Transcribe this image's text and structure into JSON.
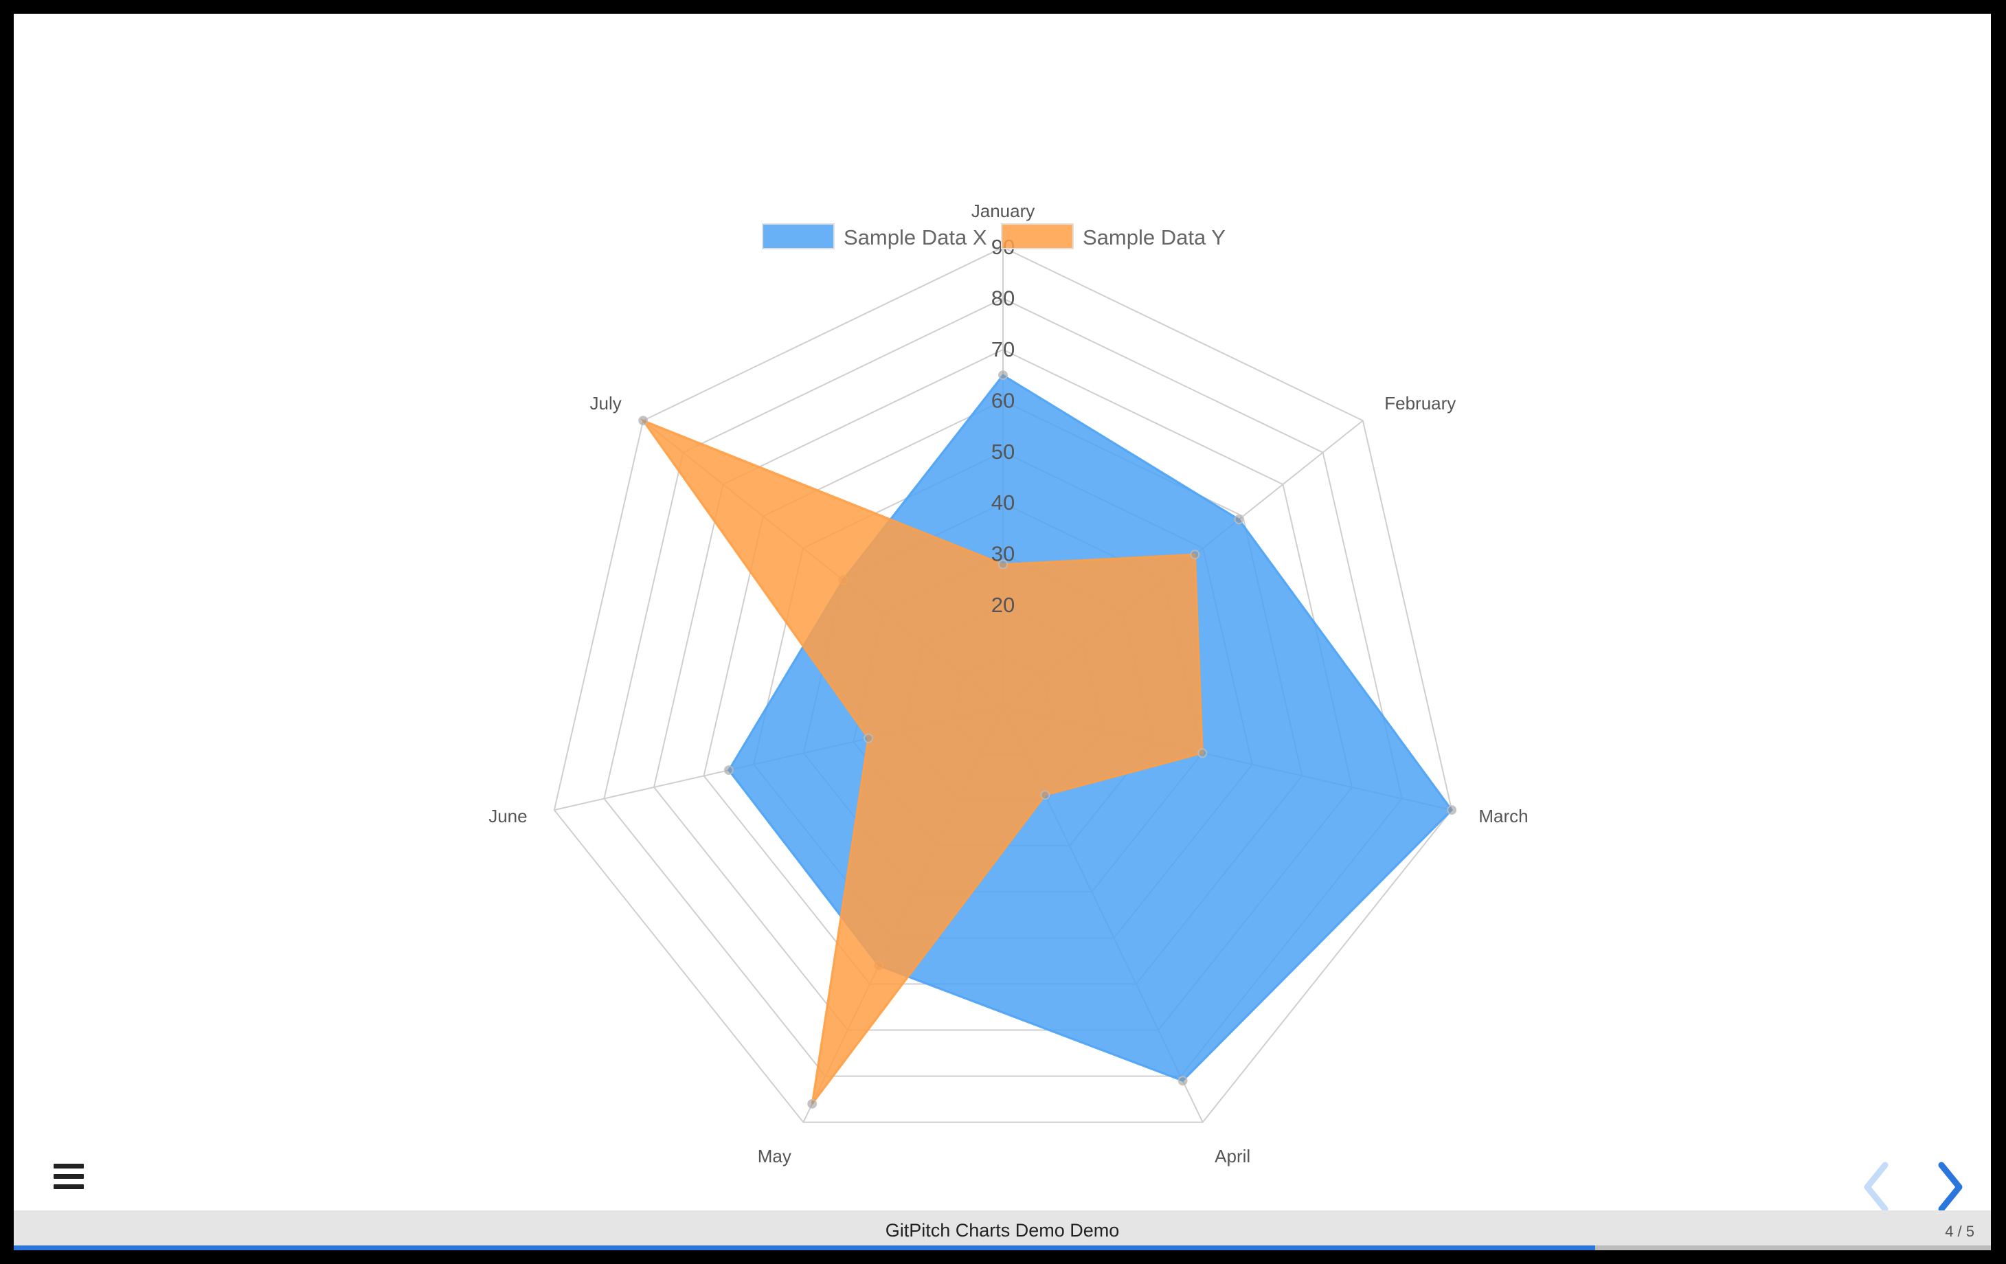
{
  "chart_data": {
    "type": "radar",
    "categories": [
      "January",
      "February",
      "March",
      "April",
      "May",
      "June",
      "July"
    ],
    "r_ticks": [
      10,
      20,
      30,
      40,
      50,
      60,
      70,
      80,
      90
    ],
    "r_tick_labels": [
      "",
      "20",
      "30",
      "40",
      "50",
      "60",
      "70",
      "80",
      "90"
    ],
    "r_range": [
      0,
      90
    ],
    "grid": true,
    "legend_position": "top",
    "series": [
      {
        "name": "Sample Data X",
        "values": [
          65,
          59,
          90,
          81,
          56,
          55,
          40
        ],
        "color": "#4da3f5"
      },
      {
        "name": "Sample Data Y",
        "values": [
          28,
          48,
          40,
          19,
          86,
          27,
          90
        ],
        "color": "#ff9f45"
      }
    ]
  },
  "footer": {
    "title": "GitPitch Charts Demo Demo",
    "counter": "4 / 5",
    "progress": 0.8
  },
  "controls": {
    "menu_icon": "hamburger-menu-icon",
    "prev_icon": "chevron-left-icon",
    "next_icon": "chevron-right-icon",
    "prev_color": "#c4dcf7",
    "next_color": "#2a76dd"
  }
}
